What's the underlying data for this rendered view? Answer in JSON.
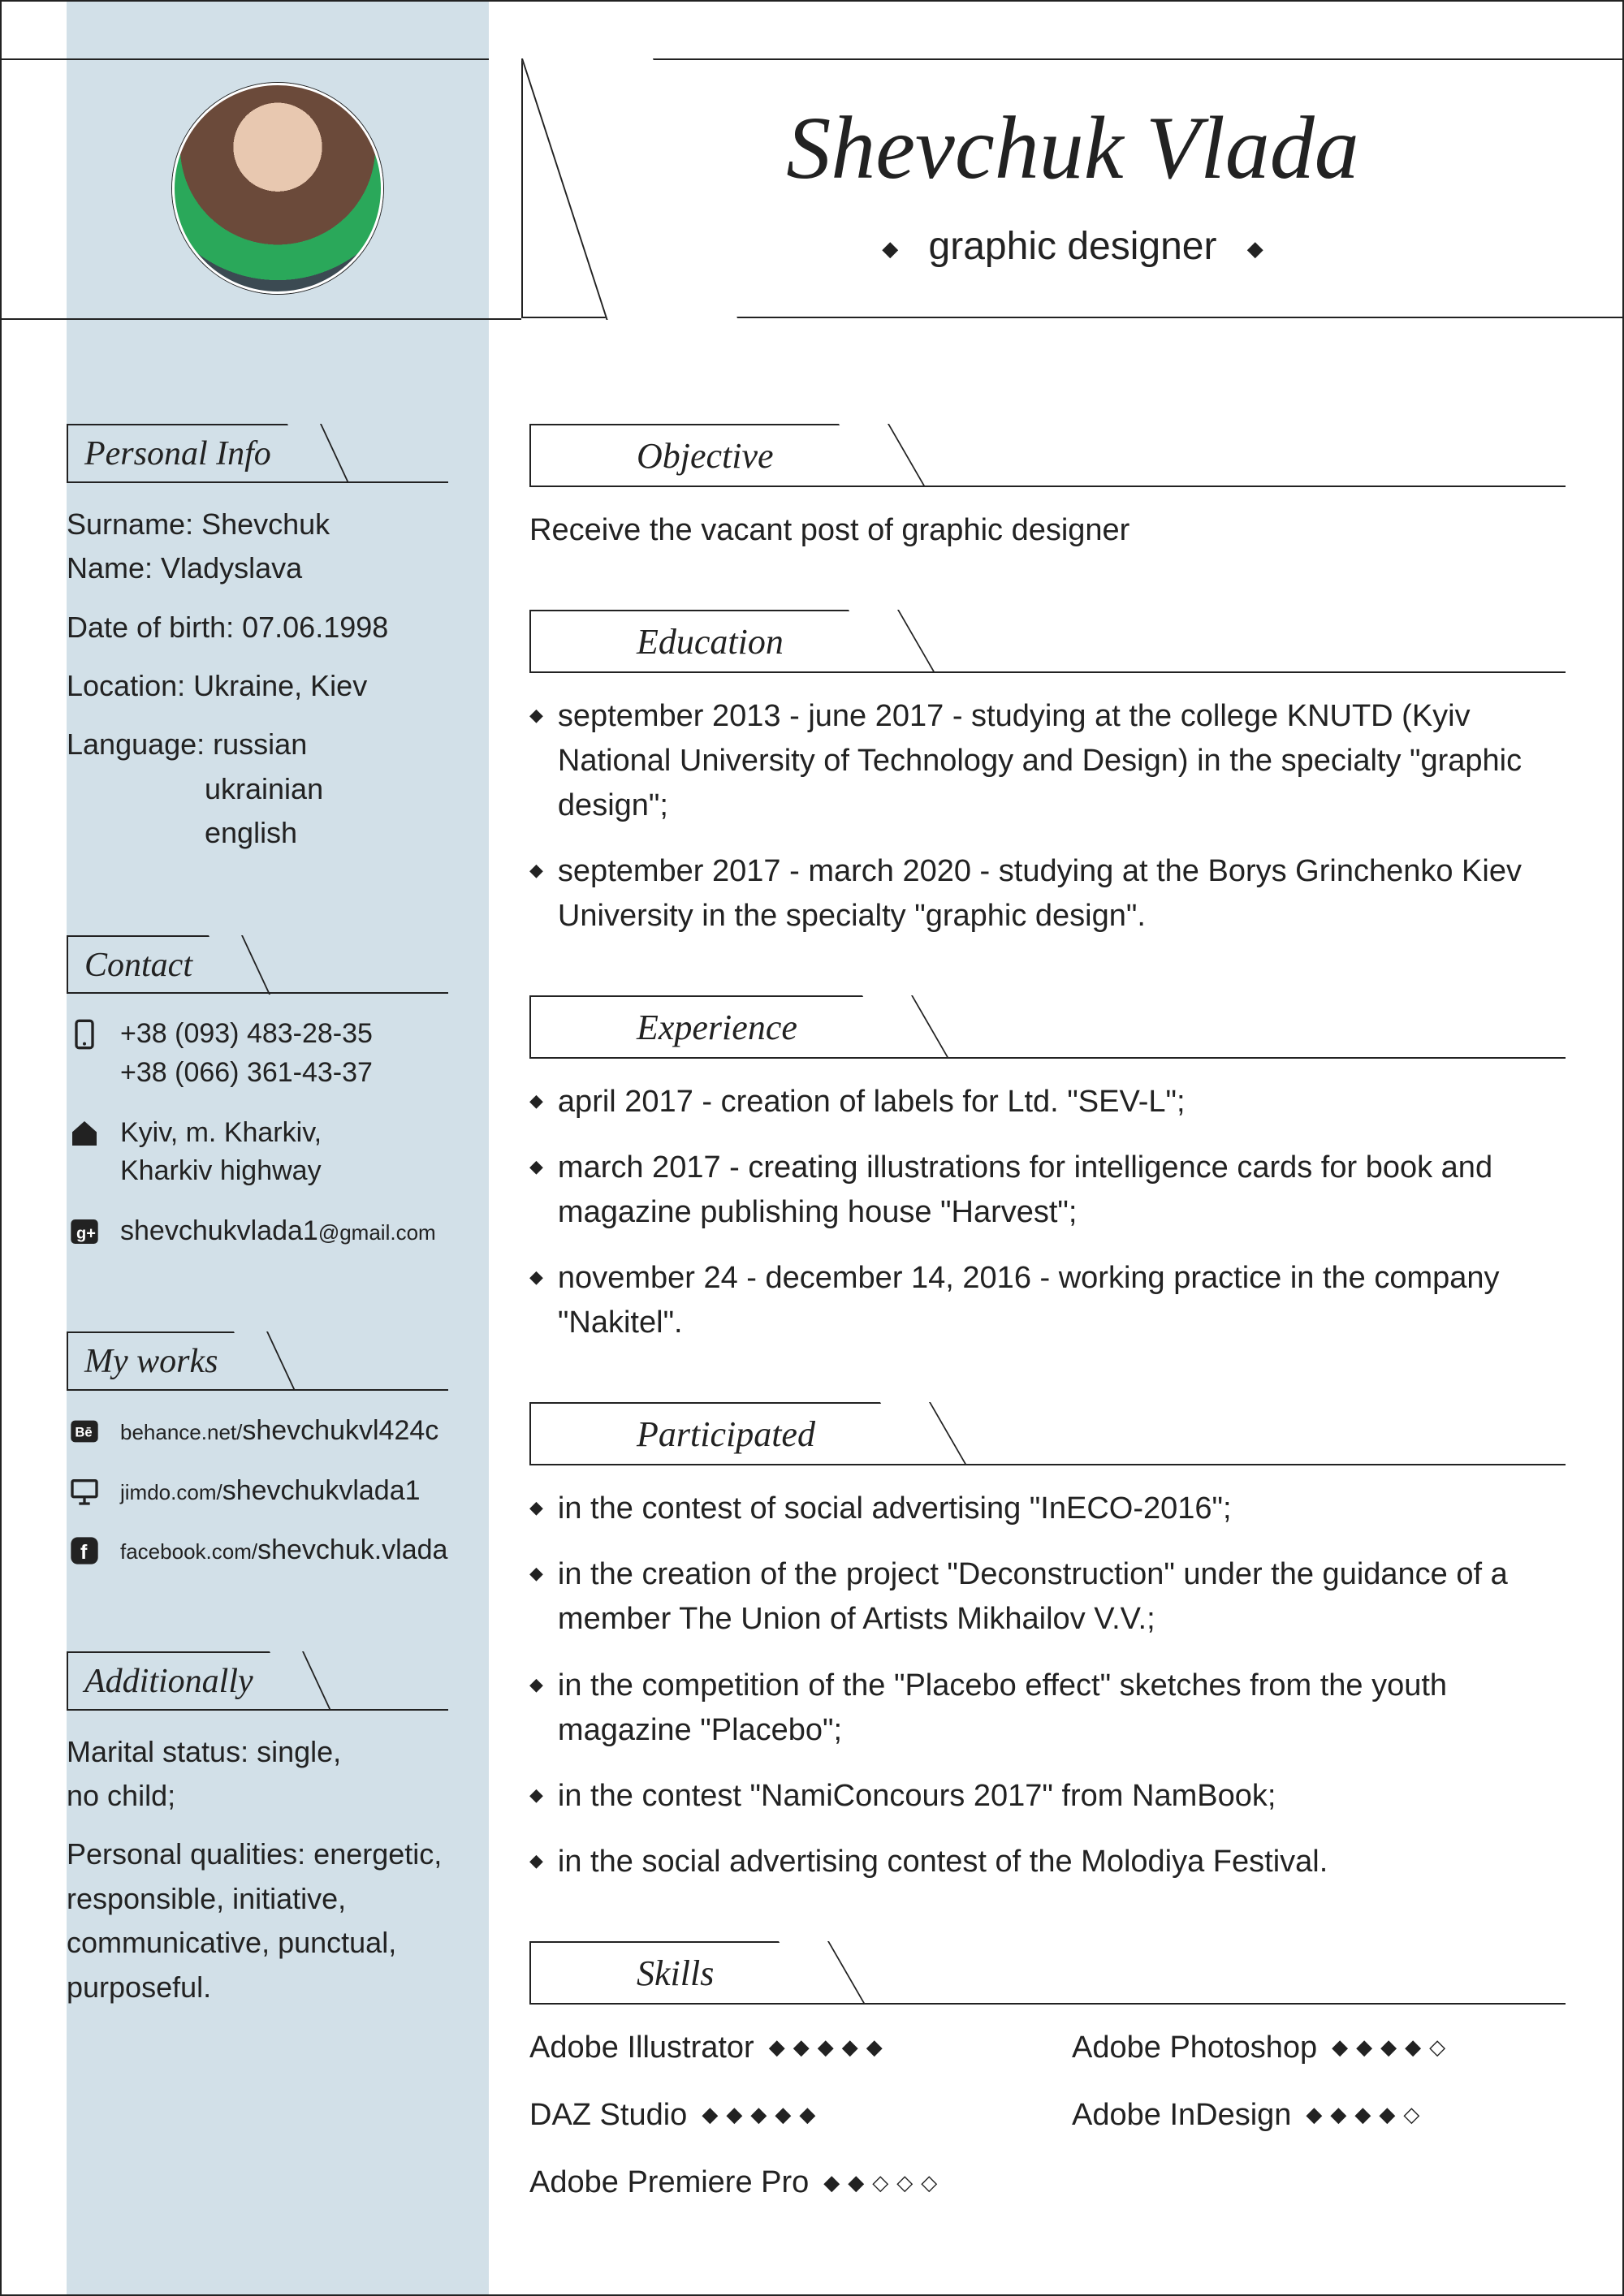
{
  "colors": {
    "sidebar_bg": "#d2e0e8",
    "border": "#222222",
    "text": "#222222",
    "page_bg": "#ffffff"
  },
  "header": {
    "name": "Shevchuk Vlada",
    "subtitle": "graphic designer"
  },
  "personal_info": {
    "title": "Personal Info",
    "surname_label": "Surname: Shevchuk",
    "name_label": "Name: Vladyslava",
    "dob": "Date of birth: 07.06.1998",
    "location": "Location: Ukraine, Kiev",
    "language_label": "Language: russian",
    "language_2": "ukrainian",
    "language_3": "english"
  },
  "contact": {
    "title": "Contact",
    "phone1": "+38 (093) 483-28-35",
    "phone2": "+38 (066) 361-43-37",
    "address1": "Kyiv, m. Kharkiv,",
    "address2": "Kharkiv highway",
    "email_user": "shevchukvlada1",
    "email_domain": "@gmail.com"
  },
  "works": {
    "title": "My works",
    "behance_prefix": "behance.net/",
    "behance_user": "shevchukvl424c",
    "jimdo_prefix": "jimdo.com/",
    "jimdo_user": "shevchukvlada1",
    "fb_prefix": "facebook.com/",
    "fb_user": "shevchuk.vlada"
  },
  "additionally": {
    "title": "Additionally",
    "marital1": "Marital status: single,",
    "marital2": "no child;",
    "qualities1": "Personal qualities: energetic,",
    "qualities2": "responsible, initiative,",
    "qualities3": "communicative, punctual,",
    "qualities4": "purposeful."
  },
  "objective": {
    "title": "Objective",
    "text": "Receive the vacant post of graphic designer"
  },
  "education": {
    "title": "Education",
    "items": [
      "september 2013 - june 2017 - studying at the college KNUTD (Kyiv National University of Technology and Design) in the specialty \"graphic design\";",
      "september 2017 - march 2020 - studying at the Borys Grinchenko Kiev University in the specialty \"graphic design\"."
    ]
  },
  "experience": {
    "title": "Experience",
    "items": [
      "april 2017 - creation of labels for Ltd. \"SEV-L\";",
      "march 2017 - creating illustrations for intelligence cards for book and magazine publishing house \"Harvest\";",
      "november 24 - december 14, 2016 - working practice in the company \"Nakitel\"."
    ]
  },
  "participated": {
    "title": "Participated",
    "items": [
      "in the contest of social advertising \"InECO-2016\";",
      "in the creation of the project \"Deconstruction\" under the guidance of a member The Union of Artists Mikhailov V.V.;",
      "in the competition of the \"Placebo effect\" sketches from the youth magazine \"Placebo\";",
      "in the contest \"NamiConcours 2017\" from NamBook;",
      "in the social advertising contest of the Molodiya Festival."
    ]
  },
  "skills": {
    "title": "Skills",
    "items": [
      {
        "name": "Adobe Illustrator",
        "level": 5
      },
      {
        "name": "Adobe Photoshop",
        "level": 4
      },
      {
        "name": "DAZ Studio",
        "level": 5
      },
      {
        "name": "Adobe InDesign",
        "level": 4
      },
      {
        "name": "Adobe Premiere Pro",
        "level": 2
      }
    ],
    "max": 5
  }
}
